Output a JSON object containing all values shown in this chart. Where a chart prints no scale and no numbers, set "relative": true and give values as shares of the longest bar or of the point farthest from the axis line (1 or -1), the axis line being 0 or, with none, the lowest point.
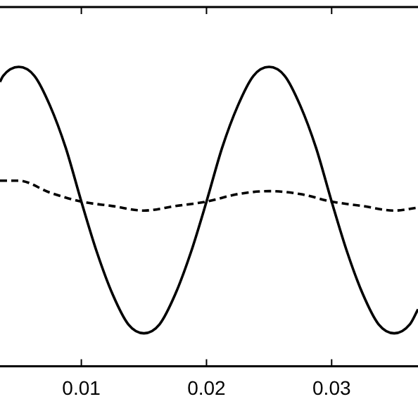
{
  "chart_data": {
    "type": "line",
    "relative": true,
    "xlim": [
      0.0035,
      0.0369
    ],
    "xticks": [
      0.01,
      0.02,
      0.03
    ],
    "grid": false,
    "legend": false,
    "marker": "none",
    "series": [
      {
        "color": "#000000",
        "line_style": "solid",
        "x": [
          0.0035,
          0.00375,
          0.005,
          0.00625,
          0.0075,
          0.00875,
          0.01,
          0.01125,
          0.0125,
          0.01375,
          0.015,
          0.01625,
          0.0175,
          0.01875,
          0.02,
          0.02125,
          0.0225,
          0.02375,
          0.025,
          0.02625,
          0.0275,
          0.02875,
          0.03,
          0.03125,
          0.0325,
          0.03375,
          0.035,
          0.03625,
          0.0369
        ],
        "values": [
          0.95,
          0.97,
          1.0,
          0.97,
          0.87,
          0.73,
          0.55,
          0.38,
          0.24,
          0.14,
          0.11,
          0.14,
          0.24,
          0.38,
          0.55,
          0.73,
          0.87,
          0.97,
          1.0,
          0.97,
          0.87,
          0.73,
          0.55,
          0.38,
          0.24,
          0.14,
          0.11,
          0.14,
          0.19
        ]
      },
      {
        "color": "#000000",
        "line_style": "dashed",
        "x": [
          0.0035,
          0.005,
          0.0075,
          0.01,
          0.0125,
          0.015,
          0.0175,
          0.02,
          0.0225,
          0.025,
          0.0275,
          0.03,
          0.0325,
          0.035,
          0.0369
        ],
        "values": [
          0.62,
          0.62,
          0.58,
          0.55,
          0.535,
          0.52,
          0.535,
          0.55,
          0.575,
          0.585,
          0.575,
          0.55,
          0.535,
          0.52,
          0.53
        ]
      }
    ]
  }
}
